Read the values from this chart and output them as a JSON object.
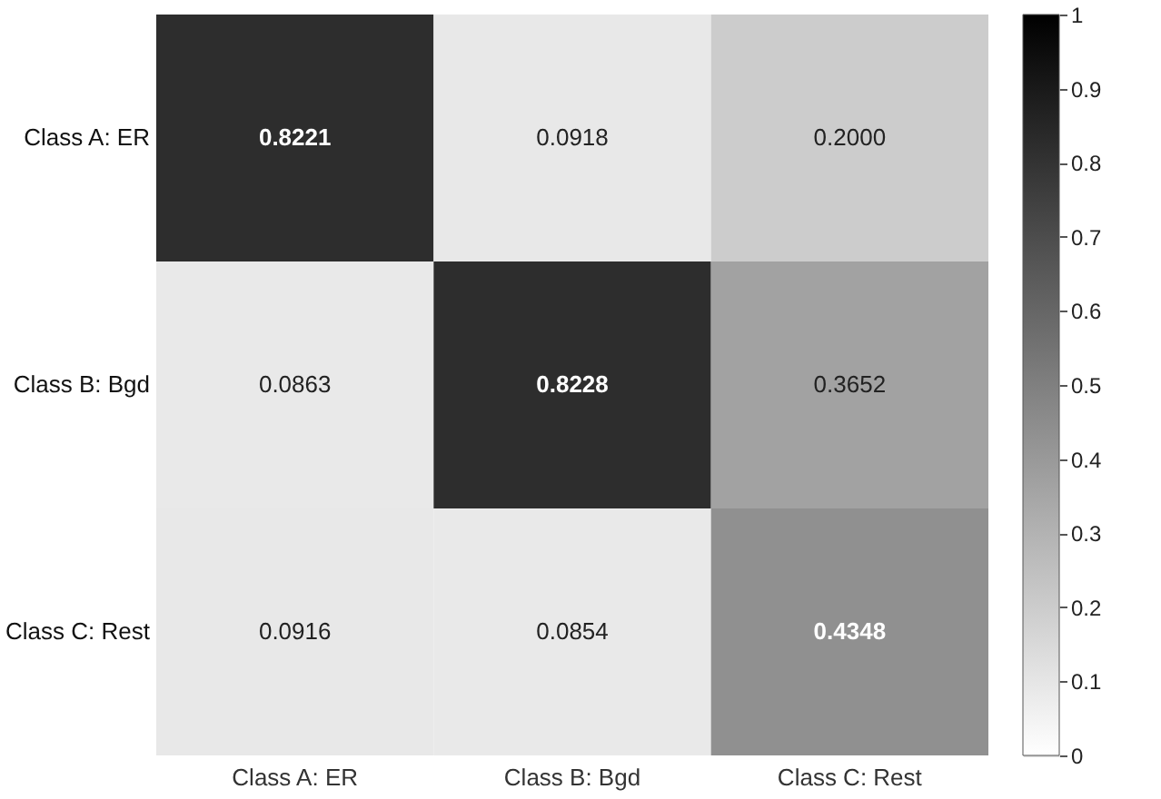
{
  "chart_data": {
    "type": "heatmap",
    "categories": [
      "Class A: ER",
      "Class B: Bgd",
      "Class C: Rest"
    ],
    "y_categories": [
      "Class A: ER",
      "Class B: Bgd",
      "Class C: Rest"
    ],
    "cells": [
      [
        0.8221,
        0.0918,
        0.2
      ],
      [
        0.0863,
        0.8228,
        0.3652
      ],
      [
        0.0916,
        0.0854,
        0.4348
      ]
    ],
    "data_labels": true,
    "cell_labels": [
      [
        "0.8221",
        "0.0918",
        "0.2000"
      ],
      [
        "0.0863",
        "0.8228",
        "0.3652"
      ],
      [
        "0.0916",
        "0.0854",
        "0.4348"
      ]
    ],
    "clim": [
      0,
      1
    ],
    "cticks": [
      0,
      0.1,
      0.2,
      0.3,
      0.4,
      0.5,
      0.6,
      0.7,
      0.8,
      0.9,
      1
    ]
  }
}
